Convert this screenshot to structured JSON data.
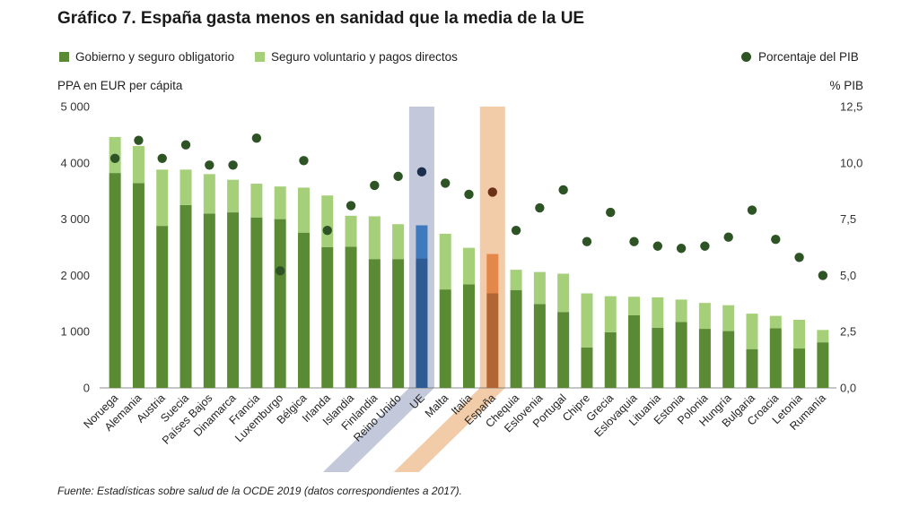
{
  "title": "Gráfico 7. España gasta menos en sanidad que la media de la UE",
  "legend": {
    "gov": "Gobierno y seguro obligatorio",
    "vol": "Seguro voluntario y pagos directos",
    "pib": "Porcentaje del PIB"
  },
  "colors": {
    "gov": "#5b8a35",
    "vol": "#a5cf79",
    "dot": "#2e5425",
    "eu_band": "#c3c9da",
    "eu_gov": "#2d5b94",
    "eu_vol": "#3f79be",
    "eu_dot": "#1c2f4f",
    "es_band": "#f2cca8",
    "es_gov": "#b26633",
    "es_vol": "#e4874a",
    "es_dot": "#6b3218"
  },
  "left_axis_title": "PPA en EUR per cápita",
  "right_axis_title": "% PIB",
  "source": "Fuente: Estadísticas sobre salud de la OCDE 2019 (datos correspondientes a 2017).",
  "chart_data": {
    "type": "bar",
    "stacked": true,
    "title": "España gasta menos en sanidad que la media de la UE",
    "ylabel": "PPA en EUR per cápita",
    "y2label": "% PIB",
    "ylim": [
      0,
      5000
    ],
    "y2lim": [
      0,
      12.5
    ],
    "yticks": [
      "0",
      "1 000",
      "2 000",
      "3 000",
      "4 000",
      "5 000"
    ],
    "y2ticks": [
      "0,0",
      "2,5",
      "5,0",
      "7,5",
      "10,0",
      "12,5"
    ],
    "highlight": {
      "UE": "eu",
      "España": "es"
    },
    "categories": [
      "Noruega",
      "Alemania",
      "Austria",
      "Suecia",
      "Países Bajos",
      "Dinamarca",
      "Francia",
      "Luxemburgo",
      "Bélgica",
      "Irlanda",
      "Islandia",
      "Finlandia",
      "Reino Unido",
      "UE",
      "Malta",
      "Italia",
      "España",
      "Chequia",
      "Eslovenia",
      "Portugal",
      "Chipre",
      "Grecia",
      "Eslovaquia",
      "Lituania",
      "Estonia",
      "Polonia",
      "Hungría",
      "Bulgaria",
      "Croacia",
      "Letonia",
      "Rumanía"
    ],
    "series": [
      {
        "name": "Gobierno y seguro obligatorio",
        "axis": "left",
        "values": [
          3820,
          3640,
          2880,
          3250,
          3100,
          3120,
          3030,
          3000,
          2760,
          2500,
          2510,
          2290,
          2290,
          2300,
          1750,
          1840,
          1680,
          1740,
          1490,
          1350,
          720,
          990,
          1290,
          1070,
          1170,
          1050,
          1010,
          690,
          1060,
          700,
          810
        ]
      },
      {
        "name": "Seguro voluntario y pagos directos",
        "axis": "left",
        "values": [
          640,
          660,
          1000,
          630,
          700,
          580,
          600,
          580,
          800,
          920,
          550,
          760,
          620,
          590,
          990,
          650,
          700,
          360,
          570,
          680,
          960,
          640,
          330,
          540,
          400,
          460,
          460,
          630,
          220,
          510,
          220
        ]
      },
      {
        "name": "Porcentaje del PIB",
        "type": "scatter",
        "axis": "right",
        "values": [
          10.2,
          11.0,
          10.2,
          10.8,
          9.9,
          9.9,
          11.1,
          5.2,
          10.1,
          7.0,
          8.1,
          9.0,
          9.4,
          9.6,
          9.1,
          8.6,
          8.7,
          7.0,
          8.0,
          8.8,
          6.5,
          7.8,
          6.5,
          6.3,
          6.2,
          6.3,
          6.7,
          7.9,
          6.6,
          5.8,
          5.0
        ]
      }
    ]
  }
}
